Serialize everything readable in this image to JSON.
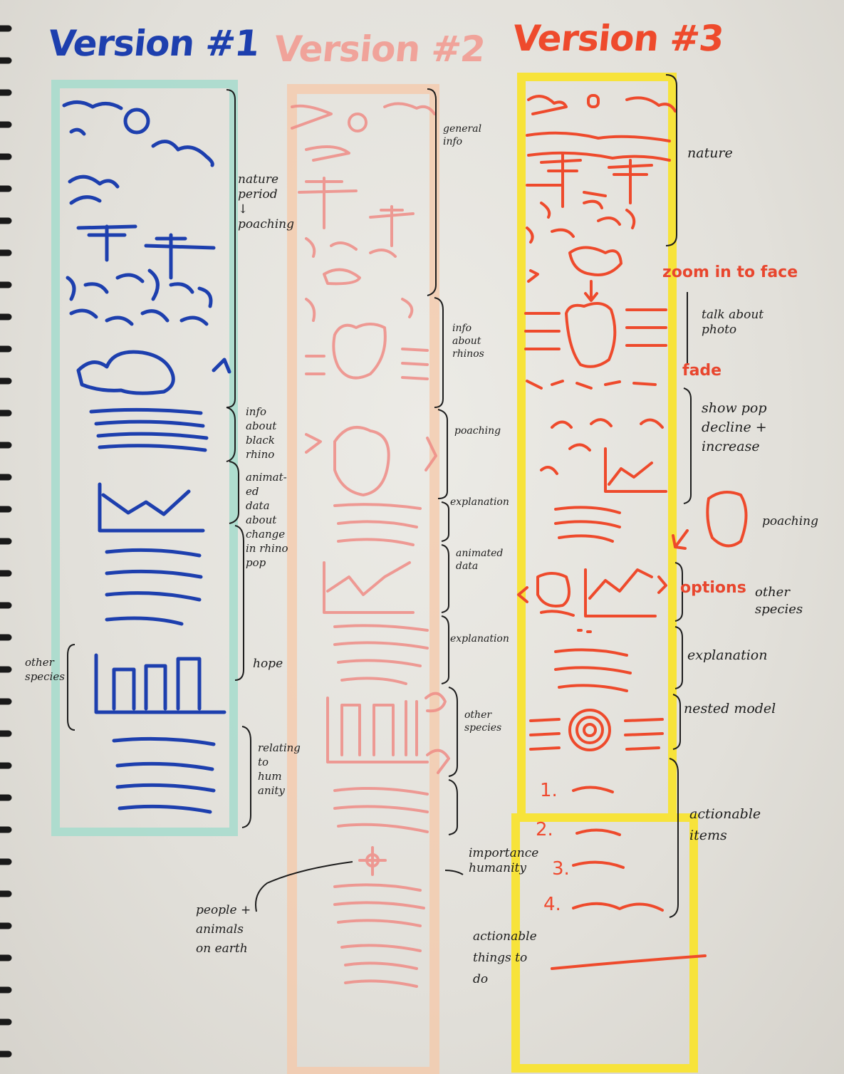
{
  "titles": {
    "v1": "Version #1",
    "v2": "Version #2",
    "v3": "Version #3"
  },
  "colors": {
    "v1_ink": "#1d3fae",
    "v1_frame": "#a9dccd",
    "v2_ink": "#ef8c86",
    "v2_frame": "#f6c8a8",
    "v3_ink": "#ee4a2c",
    "v3_frame": "#f7e33a",
    "note_ink": "#1d1d1d",
    "spiral": "#1a1a1a"
  },
  "v1_notes": {
    "nature": "nature\nperiod\n↓\npoaching",
    "info_rhino": "info\nabout\nblack\nrhino",
    "animated": "animat-\ned\ndata\nabout\nchange\nin rhino\npop",
    "hope": "hope",
    "relating": "relating\nto\nhum\nanity",
    "other_species": "other\nspecies"
  },
  "v2_notes": {
    "general_info": "general\ninfo",
    "info_rhinos": "info\nabout\nrhinos",
    "poaching": "poaching",
    "explanation1": "explanation",
    "animated_data": "animated\ndata",
    "explanation2": "explanation",
    "other_species": "other\nspecies",
    "importance": "importance\nhumanity",
    "people": "people +\nanimals\non earth",
    "actionable": "actionable\nthings to\ndo"
  },
  "v3_notes": {
    "nature": "nature",
    "zoom": "zoom in to face",
    "talk_photo": "talk about\nphoto",
    "fade": "fade",
    "show_pop": "show pop\ndecline +\nincrease",
    "poaching": "poaching",
    "options": "options",
    "other_species": "other\nspecies",
    "explanation": "explanation",
    "nested_model": "nested model",
    "actionable_items": "actionable\nitems",
    "list_numbers": [
      "1.",
      "2.",
      "3.",
      "4."
    ]
  }
}
